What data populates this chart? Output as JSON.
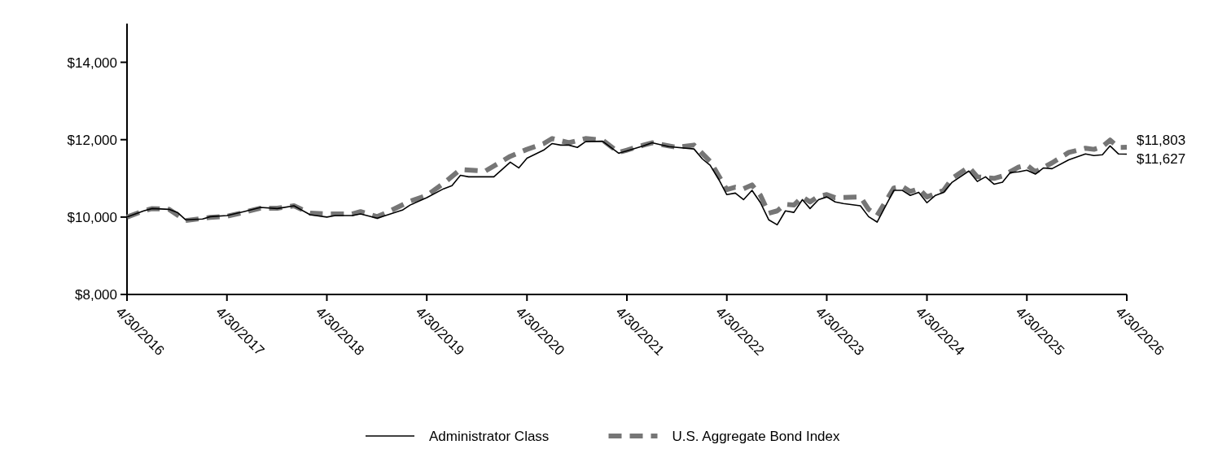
{
  "chart_data": {
    "type": "line",
    "xlim": [
      "2016-04-30",
      "2026-04-30"
    ],
    "ylim": [
      8000,
      15000
    ],
    "xticks": [
      {
        "value": "2016-04-30",
        "label": "4/30/2016"
      },
      {
        "value": "2017-04-30",
        "label": "4/30/2017"
      },
      {
        "value": "2018-04-30",
        "label": "4/30/2018"
      },
      {
        "value": "2019-04-30",
        "label": "4/30/2019"
      },
      {
        "value": "2020-04-30",
        "label": "4/30/2020"
      },
      {
        "value": "2021-04-30",
        "label": "4/30/2021"
      },
      {
        "value": "2022-04-30",
        "label": "4/30/2022"
      },
      {
        "value": "2023-04-30",
        "label": "4/30/2023"
      },
      {
        "value": "2024-04-30",
        "label": "4/30/2024"
      },
      {
        "value": "2025-04-30",
        "label": "4/30/2025"
      },
      {
        "value": "2026-04-30",
        "label": "4/30/2026"
      }
    ],
    "yticks": [
      {
        "value": 8000,
        "label": "$8,000"
      },
      {
        "value": 10000,
        "label": "$10,000"
      },
      {
        "value": 12000,
        "label": "$12,000"
      },
      {
        "value": 14000,
        "label": "$14,000"
      }
    ],
    "grid": false,
    "legend": "bottom",
    "marker": "none",
    "annotations": [
      {
        "text": "$11,803",
        "x": "2026-04-30",
        "y": 11803
      },
      {
        "text": "$11,627",
        "x": "2026-04-30",
        "y": 11627
      }
    ],
    "series": [
      {
        "name": "Administrator Class",
        "color": "#000000",
        "line_style": "solid",
        "x": [
          "2016-04-30",
          "2016-06-30",
          "2016-07-31",
          "2016-09-30",
          "2016-10-31",
          "2016-11-30",
          "2017-01-31",
          "2017-02-28",
          "2017-04-30",
          "2017-06-30",
          "2017-08-31",
          "2017-10-31",
          "2017-12-31",
          "2018-02-28",
          "2018-04-30",
          "2018-05-31",
          "2018-07-31",
          "2018-08-31",
          "2018-10-31",
          "2018-11-30",
          "2019-01-31",
          "2019-02-28",
          "2019-04-30",
          "2019-06-30",
          "2019-07-31",
          "2019-08-31",
          "2019-09-30",
          "2019-12-31",
          "2020-02-29",
          "2020-03-31",
          "2020-04-30",
          "2020-06-30",
          "2020-07-31",
          "2020-08-31",
          "2020-09-30",
          "2020-10-31",
          "2020-11-30",
          "2021-01-31",
          "2021-03-31",
          "2021-04-30",
          "2021-06-30",
          "2021-07-31",
          "2021-09-30",
          "2021-12-31",
          "2022-01-31",
          "2022-02-28",
          "2022-03-31",
          "2022-04-30",
          "2022-05-31",
          "2022-06-30",
          "2022-07-31",
          "2022-08-31",
          "2022-09-30",
          "2022-10-31",
          "2022-11-30",
          "2022-12-31",
          "2023-01-31",
          "2023-02-28",
          "2023-03-31",
          "2023-04-30",
          "2023-05-31",
          "2023-06-30",
          "2023-08-31",
          "2023-09-30",
          "2023-10-31",
          "2023-12-31",
          "2024-01-31",
          "2024-02-29",
          "2024-03-31",
          "2024-04-30",
          "2024-05-31",
          "2024-06-30",
          "2024-07-31",
          "2024-09-30",
          "2024-10-31",
          "2024-11-30",
          "2024-12-31",
          "2025-01-31",
          "2025-02-28",
          "2025-03-31",
          "2025-04-30",
          "2025-05-31",
          "2025-06-30",
          "2025-07-31",
          "2025-09-30",
          "2025-11-30",
          "2025-12-31",
          "2026-01-31",
          "2026-02-28",
          "2026-03-31",
          "2026-04-30"
        ],
        "values": [
          10000,
          10160,
          10220,
          10200,
          10120,
          9930,
          9950,
          10010,
          10040,
          10140,
          10250,
          10220,
          10290,
          10060,
          10000,
          10040,
          10040,
          10080,
          9970,
          10040,
          10180,
          10310,
          10500,
          10730,
          10810,
          11080,
          11040,
          11040,
          11420,
          11270,
          11520,
          11730,
          11900,
          11860,
          11860,
          11800,
          11950,
          11960,
          11650,
          11710,
          11840,
          11920,
          11820,
          11760,
          11500,
          11340,
          10980,
          10580,
          10620,
          10450,
          10690,
          10370,
          9930,
          9800,
          10160,
          10120,
          10450,
          10220,
          10450,
          10520,
          10390,
          10350,
          10290,
          10010,
          9870,
          10690,
          10690,
          10560,
          10640,
          10370,
          10560,
          10640,
          10900,
          11190,
          10920,
          11040,
          10850,
          10900,
          11150,
          11170,
          11210,
          11110,
          11270,
          11250,
          11480,
          11630,
          11590,
          11610,
          11840,
          11630,
          11627
        ]
      },
      {
        "name": "U.S. Aggregate Bond Index",
        "color": "#767676",
        "line_style": "dashed",
        "x": [
          "2016-04-30",
          "2016-06-30",
          "2016-07-31",
          "2016-09-30",
          "2016-11-30",
          "2017-02-28",
          "2017-04-30",
          "2017-06-30",
          "2017-08-31",
          "2017-10-31",
          "2017-12-31",
          "2018-02-28",
          "2018-04-30",
          "2018-07-31",
          "2018-08-31",
          "2018-10-31",
          "2018-11-30",
          "2019-02-28",
          "2019-04-30",
          "2019-06-30",
          "2019-08-31",
          "2019-11-30",
          "2020-02-29",
          "2020-04-30",
          "2020-06-30",
          "2020-07-31",
          "2020-09-30",
          "2020-11-30",
          "2021-01-31",
          "2021-03-31",
          "2021-04-30",
          "2021-06-30",
          "2021-07-31",
          "2021-10-31",
          "2021-12-31",
          "2022-02-28",
          "2022-04-30",
          "2022-05-31",
          "2022-06-30",
          "2022-07-31",
          "2022-08-31",
          "2022-09-30",
          "2022-10-31",
          "2022-11-30",
          "2022-12-31",
          "2023-01-31",
          "2023-02-28",
          "2023-03-31",
          "2023-04-30",
          "2023-05-31",
          "2023-08-31",
          "2023-09-30",
          "2023-10-31",
          "2023-12-31",
          "2024-01-31",
          "2024-02-29",
          "2024-03-31",
          "2024-04-30",
          "2024-06-30",
          "2024-07-31",
          "2024-09-30",
          "2024-10-31",
          "2024-12-31",
          "2025-01-31",
          "2025-03-31",
          "2025-04-30",
          "2025-05-31",
          "2025-07-31",
          "2025-09-30",
          "2025-11-30",
          "2025-12-31",
          "2026-01-31",
          "2026-02-28",
          "2026-03-31",
          "2026-04-30"
        ],
        "values": [
          10000,
          10160,
          10220,
          10200,
          9910,
          9990,
          10020,
          10120,
          10230,
          10230,
          10290,
          10100,
          10080,
          10080,
          10140,
          10010,
          10100,
          10410,
          10560,
          10870,
          11230,
          11190,
          11570,
          11750,
          11900,
          12030,
          11920,
          12030,
          11990,
          11670,
          11730,
          11860,
          11920,
          11800,
          11860,
          11440,
          10710,
          10770,
          10730,
          10830,
          10560,
          10100,
          10160,
          10330,
          10310,
          10520,
          10390,
          10540,
          10580,
          10500,
          10520,
          10200,
          10040,
          10750,
          10790,
          10660,
          10730,
          10520,
          10690,
          11000,
          11290,
          11040,
          11000,
          11060,
          11290,
          11340,
          11170,
          11400,
          11670,
          11780,
          11750,
          11820,
          11990,
          11800,
          11803
        ]
      }
    ]
  }
}
